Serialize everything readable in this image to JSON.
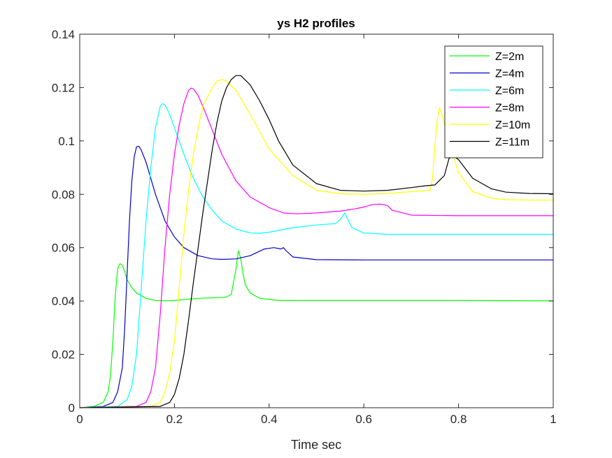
{
  "chart_data": {
    "type": "line",
    "title": "ys H2 profiles",
    "xlabel": "Time sec",
    "ylabel": "",
    "xlim": [
      0,
      1
    ],
    "ylim": [
      0,
      0.14
    ],
    "xticks": [
      "0",
      "0.2",
      "0.4",
      "0.6",
      "0.8",
      "1"
    ],
    "yticks": [
      "0",
      "0.02",
      "0.04",
      "0.06",
      "0.08",
      "0.1",
      "0.12",
      "0.14"
    ],
    "grid": false,
    "legend_position": "top-right",
    "series": [
      {
        "name": "Z=2m",
        "color": "#00ff00",
        "x": [
          0,
          0.03,
          0.05,
          0.06,
          0.065,
          0.07,
          0.075,
          0.08,
          0.085,
          0.09,
          0.095,
          0.1,
          0.11,
          0.12,
          0.14,
          0.16,
          0.18,
          0.2,
          0.25,
          0.3,
          0.31,
          0.32,
          0.33,
          0.335,
          0.34,
          0.345,
          0.35,
          0.36,
          0.38,
          0.42,
          0.6,
          0.8,
          1.0
        ],
        "y": [
          0,
          0.0005,
          0.002,
          0.006,
          0.012,
          0.025,
          0.042,
          0.052,
          0.054,
          0.0535,
          0.051,
          0.048,
          0.045,
          0.043,
          0.041,
          0.0402,
          0.0401,
          0.0402,
          0.041,
          0.0413,
          0.0415,
          0.0425,
          0.052,
          0.0588,
          0.056,
          0.05,
          0.046,
          0.043,
          0.041,
          0.0402,
          0.0402,
          0.0402,
          0.0401
        ]
      },
      {
        "name": "Z=4m",
        "color": "#0000cc",
        "x": [
          0,
          0.05,
          0.07,
          0.08,
          0.09,
          0.095,
          0.1,
          0.105,
          0.11,
          0.115,
          0.12,
          0.125,
          0.13,
          0.14,
          0.15,
          0.16,
          0.17,
          0.18,
          0.2,
          0.22,
          0.25,
          0.28,
          0.3,
          0.33,
          0.36,
          0.39,
          0.41,
          0.425,
          0.43,
          0.435,
          0.45,
          0.5,
          0.6,
          0.8,
          1.0
        ],
        "y": [
          0,
          0.0005,
          0.002,
          0.006,
          0.015,
          0.03,
          0.05,
          0.07,
          0.085,
          0.094,
          0.0978,
          0.098,
          0.0965,
          0.092,
          0.086,
          0.08,
          0.075,
          0.07,
          0.064,
          0.06,
          0.057,
          0.0558,
          0.0556,
          0.0558,
          0.057,
          0.0595,
          0.06,
          0.0595,
          0.06,
          0.059,
          0.0565,
          0.0555,
          0.0554,
          0.0554,
          0.0554
        ]
      },
      {
        "name": "Z=6m",
        "color": "#00ffff",
        "x": [
          0,
          0.08,
          0.1,
          0.11,
          0.12,
          0.13,
          0.14,
          0.15,
          0.16,
          0.17,
          0.175,
          0.18,
          0.19,
          0.2,
          0.22,
          0.24,
          0.26,
          0.28,
          0.3,
          0.33,
          0.36,
          0.38,
          0.4,
          0.45,
          0.5,
          0.54,
          0.55,
          0.56,
          0.565,
          0.575,
          0.6,
          0.65,
          0.7,
          0.8,
          1.0
        ],
        "y": [
          0,
          0.0005,
          0.003,
          0.008,
          0.02,
          0.045,
          0.07,
          0.09,
          0.105,
          0.113,
          0.114,
          0.1135,
          0.11,
          0.105,
          0.095,
          0.086,
          0.079,
          0.074,
          0.07,
          0.067,
          0.0655,
          0.0654,
          0.0658,
          0.0675,
          0.0685,
          0.069,
          0.0705,
          0.073,
          0.071,
          0.0675,
          0.0655,
          0.065,
          0.065,
          0.065,
          0.065
        ]
      },
      {
        "name": "Z=8m",
        "color": "#ff00ff",
        "x": [
          0,
          0.12,
          0.14,
          0.15,
          0.16,
          0.17,
          0.18,
          0.19,
          0.2,
          0.21,
          0.22,
          0.23,
          0.235,
          0.24,
          0.25,
          0.26,
          0.28,
          0.3,
          0.33,
          0.36,
          0.4,
          0.43,
          0.46,
          0.5,
          0.55,
          0.58,
          0.6,
          0.62,
          0.635,
          0.65,
          0.66,
          0.7,
          0.8,
          1.0
        ],
        "y": [
          0,
          0.0005,
          0.002,
          0.006,
          0.015,
          0.035,
          0.06,
          0.08,
          0.095,
          0.106,
          0.114,
          0.119,
          0.1198,
          0.1195,
          0.117,
          0.113,
          0.104,
          0.095,
          0.085,
          0.079,
          0.075,
          0.073,
          0.0727,
          0.073,
          0.0737,
          0.0745,
          0.0752,
          0.0762,
          0.0763,
          0.0758,
          0.074,
          0.0722,
          0.072,
          0.072
        ]
      },
      {
        "name": "Z=10m",
        "color": "#ffff00",
        "x": [
          0,
          0.15,
          0.17,
          0.18,
          0.19,
          0.2,
          0.21,
          0.22,
          0.23,
          0.24,
          0.25,
          0.26,
          0.28,
          0.29,
          0.3,
          0.31,
          0.33,
          0.36,
          0.4,
          0.45,
          0.5,
          0.55,
          0.6,
          0.65,
          0.7,
          0.74,
          0.745,
          0.75,
          0.755,
          0.76,
          0.765,
          0.775,
          0.8,
          0.83,
          0.87,
          0.9,
          0.95,
          1.0
        ],
        "y": [
          0,
          0.0005,
          0.002,
          0.006,
          0.013,
          0.025,
          0.045,
          0.065,
          0.082,
          0.095,
          0.105,
          0.113,
          0.12,
          0.1225,
          0.123,
          0.1225,
          0.119,
          0.11,
          0.097,
          0.087,
          0.0815,
          0.0802,
          0.08,
          0.0803,
          0.081,
          0.0815,
          0.086,
          0.098,
          0.108,
          0.1125,
          0.11,
          0.102,
          0.088,
          0.081,
          0.0785,
          0.078,
          0.0778,
          0.0778
        ]
      },
      {
        "name": "Z=11m",
        "color": "#000000",
        "x": [
          0,
          0.17,
          0.19,
          0.2,
          0.21,
          0.22,
          0.23,
          0.24,
          0.25,
          0.26,
          0.27,
          0.28,
          0.29,
          0.3,
          0.31,
          0.32,
          0.33,
          0.34,
          0.36,
          0.38,
          0.4,
          0.42,
          0.45,
          0.5,
          0.55,
          0.6,
          0.65,
          0.7,
          0.73,
          0.75,
          0.77,
          0.78,
          0.79,
          0.8,
          0.83,
          0.87,
          0.9,
          0.95,
          1.0
        ],
        "y": [
          0,
          0.0005,
          0.002,
          0.005,
          0.011,
          0.02,
          0.033,
          0.047,
          0.06,
          0.073,
          0.085,
          0.097,
          0.107,
          0.115,
          0.12,
          0.123,
          0.1245,
          0.1245,
          0.121,
          0.115,
          0.108,
          0.1,
          0.091,
          0.084,
          0.0815,
          0.0812,
          0.0815,
          0.0825,
          0.0832,
          0.0835,
          0.087,
          0.0935,
          0.0942,
          0.093,
          0.086,
          0.082,
          0.0808,
          0.0803,
          0.0802
        ]
      }
    ]
  }
}
